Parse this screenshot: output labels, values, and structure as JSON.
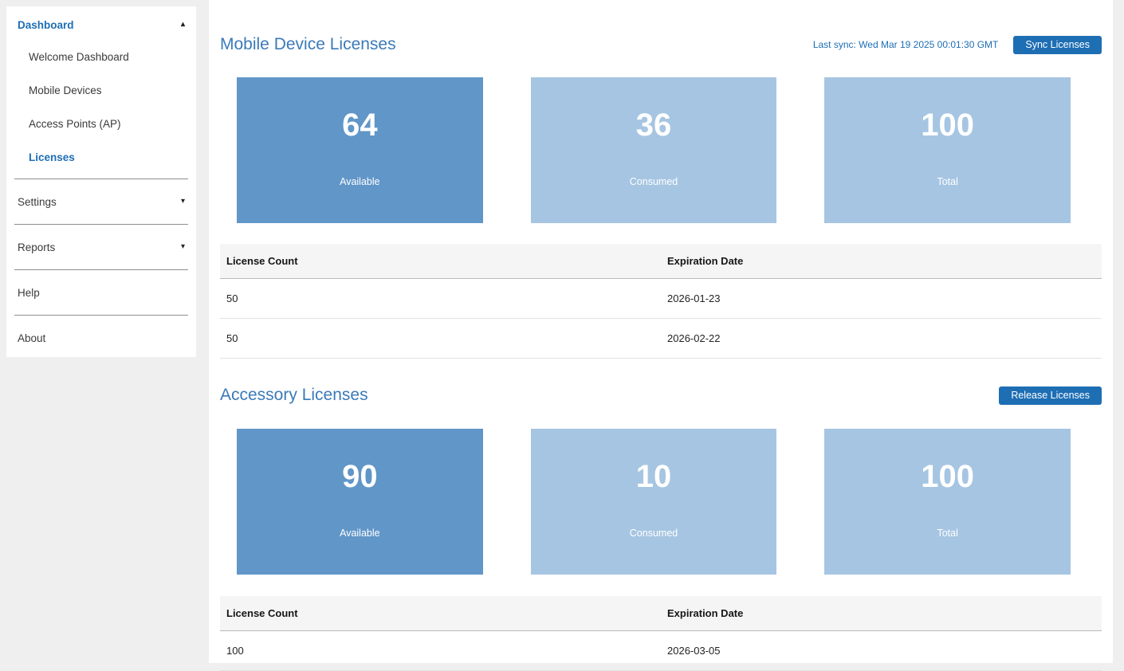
{
  "colors": {
    "page_bg": "#efefef",
    "panel_bg": "#ffffff",
    "primary": "#1e6eb4",
    "heading": "#3b7ab8",
    "card_dark": "#6196c8",
    "card_light": "#a6c5e2",
    "table_header_bg": "#f5f5f5"
  },
  "icons": {
    "caret_up": "▴",
    "caret_down": "▾"
  },
  "sidebar": {
    "dashboard": {
      "label": "Dashboard"
    },
    "sub_items": [
      {
        "label": "Welcome Dashboard"
      },
      {
        "label": "Mobile Devices"
      },
      {
        "label": "Access Points (AP)"
      },
      {
        "label": "Licenses"
      }
    ],
    "settings": {
      "label": "Settings"
    },
    "reports": {
      "label": "Reports"
    },
    "help": {
      "label": "Help"
    },
    "about": {
      "label": "About"
    }
  },
  "main": {
    "sections": [
      {
        "title": "Mobile Device Licenses",
        "last_sync": "Last sync: Wed Mar 19 2025 00:01:30 GMT",
        "action_label": "Sync Licenses",
        "cards": [
          {
            "value": "64",
            "label": "Available",
            "variant": "dark"
          },
          {
            "value": "36",
            "label": "Consumed",
            "variant": "light"
          },
          {
            "value": "100",
            "label": "Total",
            "variant": "light"
          }
        ],
        "table": {
          "headers": [
            "License Count",
            "Expiration Date"
          ],
          "rows": [
            {
              "count": "50",
              "expiration": "2026-01-23"
            },
            {
              "count": "50",
              "expiration": "2026-02-22"
            }
          ]
        }
      },
      {
        "title": "Accessory Licenses",
        "action_label": "Release Licenses",
        "cards": [
          {
            "value": "90",
            "label": "Available",
            "variant": "dark"
          },
          {
            "value": "10",
            "label": "Consumed",
            "variant": "light"
          },
          {
            "value": "100",
            "label": "Total",
            "variant": "light"
          }
        ],
        "table": {
          "headers": [
            "License Count",
            "Expiration Date"
          ],
          "rows": [
            {
              "count": "100",
              "expiration": "2026-03-05"
            }
          ]
        }
      }
    ]
  }
}
